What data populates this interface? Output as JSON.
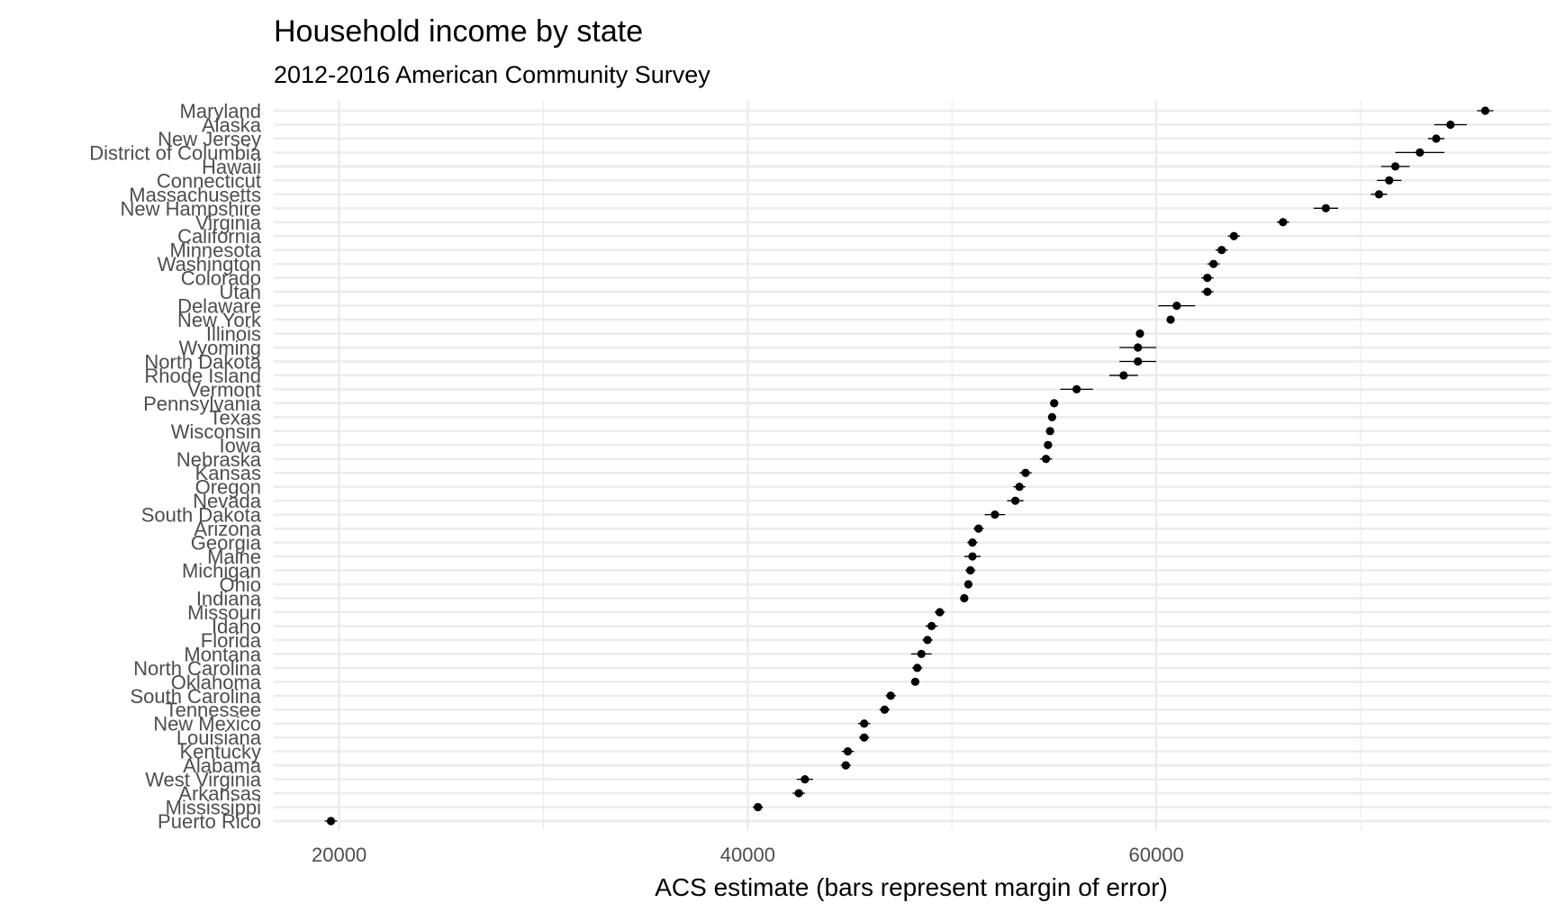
{
  "chart_data": {
    "type": "scatter",
    "title": "Household income by state",
    "subtitle": "2012-2016 American Community Survey",
    "xlabel": "ACS estimate (bars represent margin of error)",
    "ylabel": "",
    "xlim": [
      16800,
      79300
    ],
    "x_ticks": [
      20000,
      40000,
      60000
    ],
    "x_minor_ticks": [
      30000,
      50000,
      70000
    ],
    "grid": true,
    "legend": "none",
    "point_color": "#000000",
    "error_bar_color": "#000000",
    "grid_color": "#ebebeb",
    "categories": [
      "Maryland",
      "Alaska",
      "New Jersey",
      "District of Columbia",
      "Hawaii",
      "Connecticut",
      "Massachusetts",
      "New Hampshire",
      "Virginia",
      "California",
      "Minnesota",
      "Washington",
      "Colorado",
      "Utah",
      "Delaware",
      "New York",
      "Illinois",
      "Wyoming",
      "North Dakota",
      "Rhode Island",
      "Vermont",
      "Pennsylvania",
      "Texas",
      "Wisconsin",
      "Iowa",
      "Nebraska",
      "Kansas",
      "Oregon",
      "Nevada",
      "South Dakota",
      "Arizona",
      "Georgia",
      "Maine",
      "Michigan",
      "Ohio",
      "Indiana",
      "Missouri",
      "Idaho",
      "Florida",
      "Montana",
      "North Carolina",
      "Oklahoma",
      "South Carolina",
      "Tennessee",
      "New Mexico",
      "Louisiana",
      "Kentucky",
      "Alabama",
      "West Virginia",
      "Arkansas",
      "Mississippi",
      "Puerto Rico"
    ],
    "estimates": [
      76100,
      74400,
      73700,
      72900,
      71700,
      71400,
      70900,
      68300,
      66200,
      63800,
      63200,
      62800,
      62500,
      62500,
      61000,
      60700,
      59200,
      59100,
      59100,
      58400,
      56100,
      55000,
      54900,
      54800,
      54700,
      54600,
      53600,
      53300,
      53100,
      52100,
      51300,
      51000,
      51000,
      50900,
      50800,
      50600,
      49400,
      49000,
      48800,
      48500,
      48300,
      48200,
      47000,
      46700,
      45700,
      45700,
      44900,
      44800,
      42800,
      42500,
      40500,
      19600
    ],
    "moe": [
      400,
      800,
      400,
      1200,
      700,
      600,
      400,
      600,
      300,
      300,
      300,
      300,
      300,
      300,
      900,
      200,
      200,
      900,
      900,
      700,
      800,
      200,
      200,
      200,
      200,
      300,
      300,
      300,
      400,
      500,
      250,
      250,
      400,
      250,
      200,
      200,
      250,
      300,
      250,
      500,
      250,
      200,
      250,
      250,
      300,
      250,
      300,
      250,
      400,
      300,
      250,
      300
    ]
  }
}
